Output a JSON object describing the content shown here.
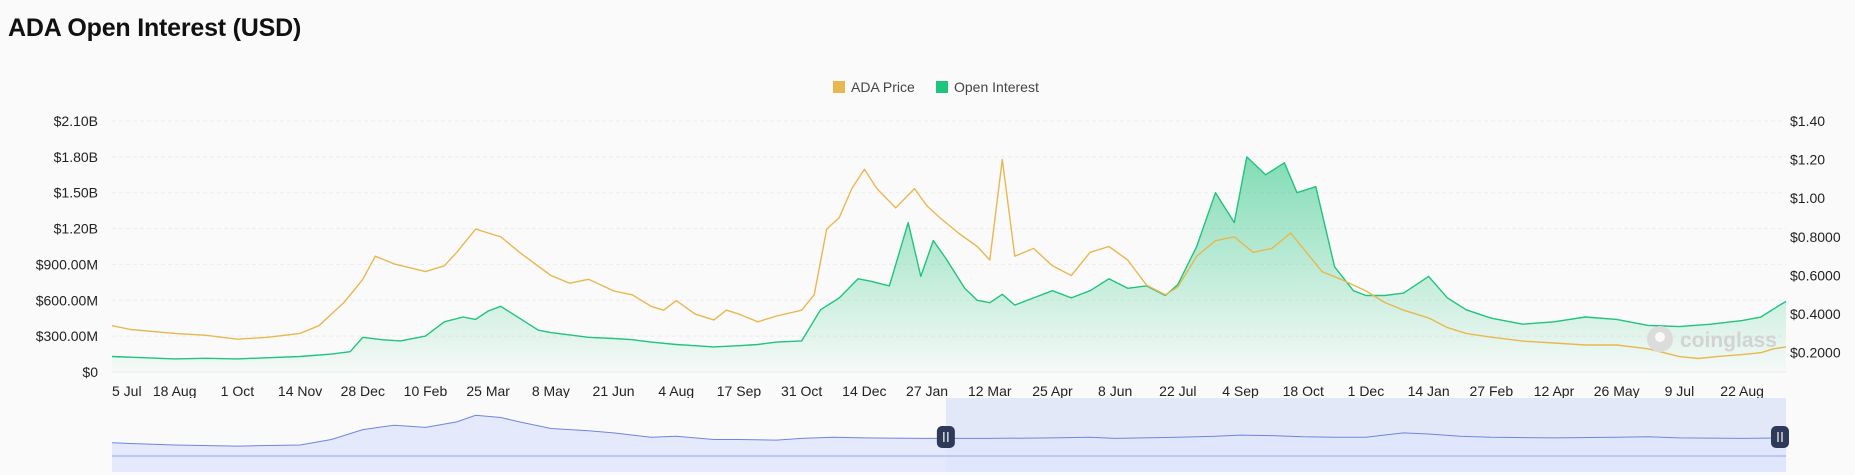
{
  "page": {
    "title": "ADA Open Interest (USD)"
  },
  "watermark": "coinglass",
  "colors": {
    "price": "#e8b84f",
    "oi": "#1fc47d",
    "oi_fill_top": "#1fc47d",
    "navigator": "#6f86e0",
    "navigator_fill": "#dde3f7",
    "grid": "#ececec"
  },
  "chart_data": {
    "type": "line",
    "title": "ADA Open Interest (USD)",
    "legend": {
      "placement": "top-center",
      "entries": [
        "ADA Price",
        "Open Interest"
      ]
    },
    "x_tick_labels": [
      "5 Jul",
      "18 Aug",
      "1 Oct",
      "14 Nov",
      "28 Dec",
      "10 Feb",
      "25 Mar",
      "8 May",
      "21 Jun",
      "4 Aug",
      "17 Sep",
      "31 Oct",
      "14 Dec",
      "27 Jan",
      "12 Mar",
      "25 Apr",
      "8 Jun",
      "22 Jul",
      "4 Sep",
      "18 Oct",
      "1 Dec",
      "14 Jan",
      "27 Feb",
      "12 Apr",
      "26 May",
      "9 Jul",
      "22 Aug"
    ],
    "y_left": {
      "ticks": [
        "$0",
        "$300.00M",
        "$600.00M",
        "$900.00M",
        "$1.20B",
        "$1.50B",
        "$1.80B",
        "$2.10B"
      ],
      "range": [
        0,
        2100000000
      ]
    },
    "y_right": {
      "ticks": [
        "$0.2000",
        "$0.4000",
        "$0.6000",
        "$0.8000",
        "$1.00",
        "$1.20",
        "$1.40"
      ],
      "range": [
        0.1,
        1.4
      ]
    },
    "grid": true,
    "x_index_range": [
      0,
      26.7
    ],
    "series": [
      {
        "name": "ADA Price",
        "axis": "right",
        "points": [
          [
            0,
            0.34
          ],
          [
            0.3,
            0.32
          ],
          [
            1,
            0.3
          ],
          [
            1.5,
            0.29
          ],
          [
            2,
            0.27
          ],
          [
            2.5,
            0.28
          ],
          [
            3,
            0.3
          ],
          [
            3.3,
            0.34
          ],
          [
            3.5,
            0.4
          ],
          [
            3.7,
            0.46
          ],
          [
            4,
            0.58
          ],
          [
            4.2,
            0.7
          ],
          [
            4.5,
            0.66
          ],
          [
            5,
            0.62
          ],
          [
            5.3,
            0.65
          ],
          [
            5.5,
            0.72
          ],
          [
            5.8,
            0.84
          ],
          [
            6,
            0.82
          ],
          [
            6.2,
            0.8
          ],
          [
            6.5,
            0.72
          ],
          [
            7,
            0.6
          ],
          [
            7.3,
            0.56
          ],
          [
            7.6,
            0.58
          ],
          [
            8,
            0.52
          ],
          [
            8.3,
            0.5
          ],
          [
            8.6,
            0.44
          ],
          [
            8.8,
            0.42
          ],
          [
            9,
            0.47
          ],
          [
            9.3,
            0.4
          ],
          [
            9.6,
            0.37
          ],
          [
            9.8,
            0.42
          ],
          [
            10,
            0.4
          ],
          [
            10.3,
            0.36
          ],
          [
            10.6,
            0.39
          ],
          [
            11,
            0.42
          ],
          [
            11.2,
            0.5
          ],
          [
            11.4,
            0.84
          ],
          [
            11.6,
            0.9
          ],
          [
            11.8,
            1.05
          ],
          [
            12,
            1.15
          ],
          [
            12.2,
            1.05
          ],
          [
            12.5,
            0.95
          ],
          [
            12.8,
            1.05
          ],
          [
            13,
            0.96
          ],
          [
            13.2,
            0.9
          ],
          [
            13.5,
            0.82
          ],
          [
            13.8,
            0.75
          ],
          [
            14,
            0.68
          ],
          [
            14.2,
            1.2
          ],
          [
            14.4,
            0.7
          ],
          [
            14.7,
            0.74
          ],
          [
            15,
            0.65
          ],
          [
            15.3,
            0.6
          ],
          [
            15.6,
            0.72
          ],
          [
            15.9,
            0.75
          ],
          [
            16.2,
            0.68
          ],
          [
            16.5,
            0.55
          ],
          [
            16.8,
            0.5
          ],
          [
            17,
            0.54
          ],
          [
            17.3,
            0.7
          ],
          [
            17.6,
            0.78
          ],
          [
            17.9,
            0.8
          ],
          [
            18.2,
            0.72
          ],
          [
            18.5,
            0.74
          ],
          [
            18.8,
            0.82
          ],
          [
            19,
            0.74
          ],
          [
            19.3,
            0.62
          ],
          [
            19.6,
            0.58
          ],
          [
            20,
            0.52
          ],
          [
            20.3,
            0.46
          ],
          [
            20.6,
            0.42
          ],
          [
            21,
            0.38
          ],
          [
            21.3,
            0.33
          ],
          [
            21.6,
            0.3
          ],
          [
            22,
            0.28
          ],
          [
            22.5,
            0.26
          ],
          [
            23,
            0.25
          ],
          [
            23.5,
            0.24
          ],
          [
            24,
            0.24
          ],
          [
            24.5,
            0.22
          ],
          [
            25,
            0.18
          ],
          [
            25.3,
            0.17
          ],
          [
            25.6,
            0.18
          ],
          [
            26,
            0.19
          ],
          [
            26.3,
            0.2
          ],
          [
            26.5,
            0.22
          ],
          [
            26.7,
            0.23
          ]
        ]
      },
      {
        "name": "Open Interest",
        "axis": "left",
        "points": [
          [
            0,
            130000000
          ],
          [
            0.5,
            120000000
          ],
          [
            1,
            110000000
          ],
          [
            1.5,
            115000000
          ],
          [
            2,
            110000000
          ],
          [
            2.5,
            120000000
          ],
          [
            3,
            130000000
          ],
          [
            3.5,
            150000000
          ],
          [
            3.8,
            170000000
          ],
          [
            4,
            290000000
          ],
          [
            4.3,
            270000000
          ],
          [
            4.6,
            260000000
          ],
          [
            5,
            300000000
          ],
          [
            5.3,
            420000000
          ],
          [
            5.6,
            460000000
          ],
          [
            5.8,
            440000000
          ],
          [
            6,
            510000000
          ],
          [
            6.2,
            550000000
          ],
          [
            6.5,
            450000000
          ],
          [
            6.8,
            350000000
          ],
          [
            7,
            330000000
          ],
          [
            7.3,
            310000000
          ],
          [
            7.6,
            290000000
          ],
          [
            8,
            280000000
          ],
          [
            8.3,
            270000000
          ],
          [
            8.6,
            250000000
          ],
          [
            9,
            230000000
          ],
          [
            9.3,
            220000000
          ],
          [
            9.6,
            210000000
          ],
          [
            10,
            220000000
          ],
          [
            10.3,
            230000000
          ],
          [
            10.6,
            250000000
          ],
          [
            11,
            260000000
          ],
          [
            11.3,
            520000000
          ],
          [
            11.6,
            620000000
          ],
          [
            11.9,
            780000000
          ],
          [
            12.1,
            760000000
          ],
          [
            12.4,
            720000000
          ],
          [
            12.7,
            1250000000
          ],
          [
            12.9,
            800000000
          ],
          [
            13.1,
            1100000000
          ],
          [
            13.3,
            950000000
          ],
          [
            13.6,
            700000000
          ],
          [
            13.8,
            600000000
          ],
          [
            14,
            580000000
          ],
          [
            14.2,
            650000000
          ],
          [
            14.4,
            560000000
          ],
          [
            14.7,
            620000000
          ],
          [
            15,
            680000000
          ],
          [
            15.3,
            620000000
          ],
          [
            15.6,
            680000000
          ],
          [
            15.9,
            780000000
          ],
          [
            16.2,
            700000000
          ],
          [
            16.5,
            720000000
          ],
          [
            16.8,
            640000000
          ],
          [
            17,
            730000000
          ],
          [
            17.3,
            1050000000
          ],
          [
            17.6,
            1500000000
          ],
          [
            17.9,
            1250000000
          ],
          [
            18.1,
            1800000000
          ],
          [
            18.4,
            1650000000
          ],
          [
            18.7,
            1750000000
          ],
          [
            18.9,
            1500000000
          ],
          [
            19.2,
            1550000000
          ],
          [
            19.5,
            880000000
          ],
          [
            19.8,
            680000000
          ],
          [
            20,
            640000000
          ],
          [
            20.3,
            640000000
          ],
          [
            20.6,
            660000000
          ],
          [
            21,
            800000000
          ],
          [
            21.3,
            620000000
          ],
          [
            21.6,
            520000000
          ],
          [
            22,
            450000000
          ],
          [
            22.5,
            400000000
          ],
          [
            23,
            420000000
          ],
          [
            23.5,
            460000000
          ],
          [
            24,
            440000000
          ],
          [
            24.5,
            390000000
          ],
          [
            25,
            380000000
          ],
          [
            25.5,
            400000000
          ],
          [
            26,
            430000000
          ],
          [
            26.3,
            460000000
          ],
          [
            26.6,
            560000000
          ],
          [
            26.7,
            590000000
          ]
        ]
      }
    ],
    "navigator": {
      "points": [
        [
          0,
          0.34
        ],
        [
          1,
          0.3
        ],
        [
          2,
          0.28
        ],
        [
          3,
          0.3
        ],
        [
          3.5,
          0.4
        ],
        [
          4,
          0.58
        ],
        [
          4.5,
          0.66
        ],
        [
          5,
          0.62
        ],
        [
          5.5,
          0.72
        ],
        [
          5.8,
          0.84
        ],
        [
          6,
          0.82
        ],
        [
          6.2,
          0.8
        ],
        [
          6.5,
          0.72
        ],
        [
          7,
          0.6
        ],
        [
          7.6,
          0.56
        ],
        [
          8,
          0.52
        ],
        [
          8.6,
          0.44
        ],
        [
          9,
          0.46
        ],
        [
          9.6,
          0.4
        ],
        [
          10,
          0.4
        ],
        [
          10.6,
          0.39
        ],
        [
          11,
          0.42
        ],
        [
          11.5,
          0.44
        ],
        [
          12,
          0.43
        ],
        [
          13,
          0.42
        ],
        [
          14,
          0.42
        ],
        [
          15,
          0.43
        ],
        [
          15.6,
          0.44
        ],
        [
          16,
          0.42
        ],
        [
          17,
          0.44
        ],
        [
          17.6,
          0.46
        ],
        [
          18,
          0.48
        ],
        [
          18.5,
          0.47
        ],
        [
          19,
          0.45
        ],
        [
          19.5,
          0.44
        ],
        [
          20,
          0.44
        ],
        [
          20.6,
          0.52
        ],
        [
          21,
          0.5
        ],
        [
          21.5,
          0.46
        ],
        [
          22,
          0.44
        ],
        [
          23,
          0.43
        ],
        [
          24,
          0.44
        ],
        [
          24.5,
          0.45
        ],
        [
          25,
          0.43
        ],
        [
          26,
          0.42
        ],
        [
          26.7,
          0.43
        ]
      ],
      "selection_index_range": [
        13.3,
        26.7
      ]
    }
  }
}
